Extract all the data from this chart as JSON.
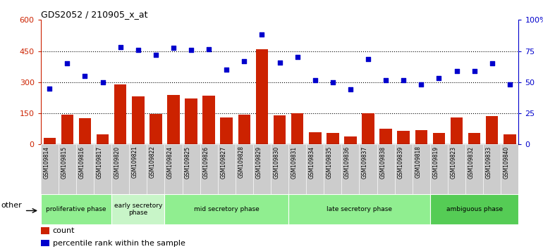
{
  "title": "GDS2052 / 210905_x_at",
  "samples": [
    "GSM109814",
    "GSM109815",
    "GSM109816",
    "GSM109817",
    "GSM109820",
    "GSM109821",
    "GSM109822",
    "GSM109824",
    "GSM109825",
    "GSM109826",
    "GSM109827",
    "GSM109828",
    "GSM109829",
    "GSM109830",
    "GSM109831",
    "GSM109834",
    "GSM109835",
    "GSM109836",
    "GSM109837",
    "GSM109838",
    "GSM109839",
    "GSM109818",
    "GSM109819",
    "GSM109823",
    "GSM109832",
    "GSM109833",
    "GSM109840"
  ],
  "counts": [
    30,
    145,
    125,
    50,
    290,
    230,
    148,
    240,
    220,
    235,
    130,
    145,
    460,
    140,
    150,
    60,
    55,
    40,
    150,
    75,
    65,
    70,
    55,
    130,
    55,
    135,
    50
  ],
  "percentiles": [
    270,
    390,
    330,
    300,
    470,
    455,
    430,
    465,
    455,
    460,
    360,
    400,
    530,
    395,
    420,
    310,
    300,
    265,
    410,
    310,
    310,
    290,
    320,
    355,
    355,
    390,
    290
  ],
  "phases": [
    {
      "label": "proliferative phase",
      "start": 0,
      "end": 4,
      "color": "#90EE90",
      "lighter": false
    },
    {
      "label": "early secretory\nphase",
      "start": 4,
      "end": 7,
      "color": "#c8f5c8",
      "lighter": true
    },
    {
      "label": "mid secretory phase",
      "start": 7,
      "end": 14,
      "color": "#90EE90",
      "lighter": false
    },
    {
      "label": "late secretory phase",
      "start": 14,
      "end": 22,
      "color": "#90EE90",
      "lighter": false
    },
    {
      "label": "ambiguous phase",
      "start": 22,
      "end": 27,
      "color": "#55cc55",
      "lighter": false
    }
  ],
  "bar_color": "#cc2200",
  "dot_color": "#0000cc",
  "left_ylim": [
    0,
    600
  ],
  "right_ylim": [
    0,
    100
  ],
  "left_yticks": [
    0,
    150,
    300,
    450,
    600
  ],
  "right_yticks": [
    0,
    25,
    50,
    75,
    100
  ],
  "right_yticklabels": [
    "0",
    "25",
    "50",
    "75",
    "100%"
  ],
  "grid_values": [
    150,
    300,
    450
  ],
  "bar_color_hex": "#cc2200",
  "dot_color_hex": "#0000cc",
  "other_label": "other",
  "legend_count_label": "count",
  "legend_pct_label": "percentile rank within the sample"
}
